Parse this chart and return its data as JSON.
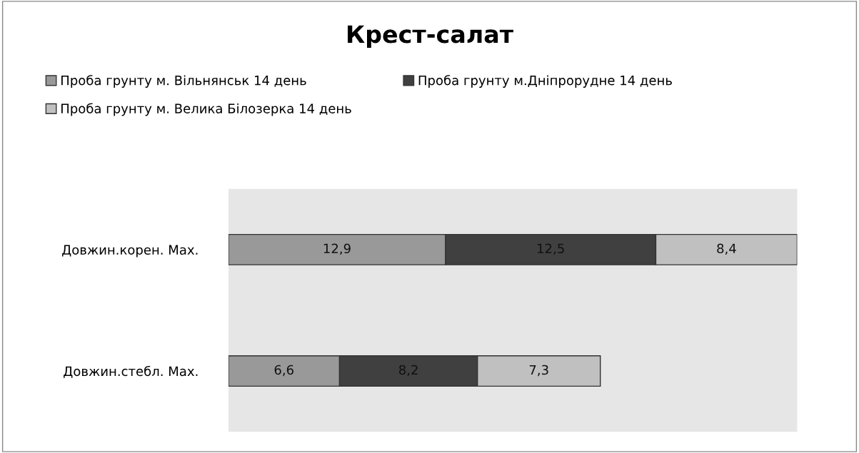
{
  "chart_data": {
    "type": "bar",
    "title": "Крест-салат",
    "orientation": "horizontal",
    "stacked": true,
    "legend": "top",
    "categories": [
      "Довжин.корен. Мах.",
      "Довжин.стебл. Мах."
    ],
    "series": [
      {
        "name": "Проба грунту м. Вільнянськ 14 день",
        "color": "#999999",
        "values": [
          12.9,
          6.6
        ],
        "value_labels": [
          "12,9",
          "6,6"
        ]
      },
      {
        "name": "Проба грунту м.Дніпрорудне 14 день",
        "color": "#404040",
        "values": [
          12.5,
          8.2
        ],
        "value_labels": [
          "12,5",
          "8,2"
        ]
      },
      {
        "name": "Проба грунту м. Велика Білозерка 14 день",
        "color": "#c0c0c0",
        "values": [
          8.4,
          7.3
        ],
        "value_labels": [
          "8,4",
          "7,3"
        ]
      }
    ]
  }
}
